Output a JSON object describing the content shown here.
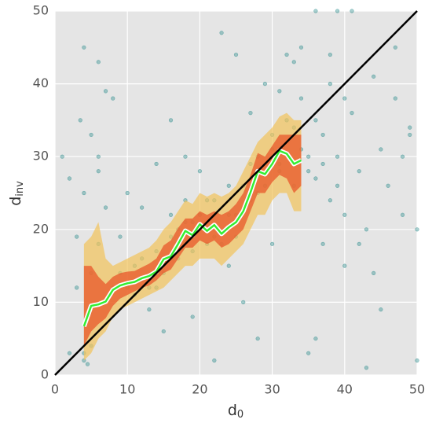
{
  "chart_data": {
    "type": "scatter",
    "xlabel": {
      "text": "d",
      "subscript": "0"
    },
    "ylabel": {
      "text": "d",
      "subscript": "inv"
    },
    "xlim": [
      0,
      50
    ],
    "ylim": [
      0,
      50
    ],
    "xticks": [
      0,
      10,
      20,
      30,
      40,
      50
    ],
    "yticks": [
      0,
      10,
      20,
      30,
      40,
      50
    ],
    "grid": true,
    "points": {
      "color": "#2b8c8c",
      "x": [
        4,
        4,
        4.5,
        5,
        5,
        3,
        3.5,
        4,
        6,
        4,
        6,
        7,
        6,
        8,
        9,
        10,
        11,
        12,
        13,
        14,
        15,
        16,
        17,
        18,
        19,
        20,
        21,
        22,
        23,
        24,
        25,
        26,
        27,
        28,
        29,
        30,
        31,
        32,
        33,
        34,
        35,
        36,
        37,
        38,
        39,
        40,
        41,
        42,
        43,
        44,
        45,
        46,
        47,
        48,
        49,
        50,
        50,
        48,
        44,
        41,
        36,
        39,
        33,
        31,
        30,
        28,
        26,
        24,
        22,
        20,
        18,
        16,
        14,
        12,
        10,
        9,
        8,
        7,
        6,
        5,
        2,
        1,
        2,
        3,
        35,
        36,
        37,
        38,
        43,
        45,
        47,
        49,
        40,
        42,
        13,
        15,
        19,
        23,
        25,
        27,
        29,
        32,
        34,
        36,
        38,
        40,
        16,
        18,
        21,
        24,
        27,
        30,
        33,
        11,
        12,
        14,
        17,
        19,
        22,
        25,
        28,
        31,
        34,
        35,
        37,
        39
      ],
      "y": [
        2,
        3,
        1.5,
        4,
        14,
        19,
        35,
        45,
        43,
        25,
        28,
        39,
        18,
        12,
        14,
        12,
        15,
        13,
        12,
        17,
        14,
        19,
        16,
        21,
        17,
        22,
        18,
        24,
        18,
        22,
        19,
        26,
        24,
        30,
        26,
        33,
        28,
        35,
        26,
        38,
        30,
        27,
        33,
        24,
        30,
        22,
        36,
        28,
        20,
        14,
        31,
        26,
        38,
        22,
        34,
        2,
        20,
        30,
        41,
        50,
        50,
        50,
        43,
        39,
        18,
        5,
        10,
        15,
        2,
        28,
        30,
        35,
        29,
        23,
        25,
        19,
        38,
        23,
        30,
        33,
        27,
        30,
        3,
        12,
        3,
        5,
        18,
        44,
        1,
        9,
        45,
        33,
        15,
        18,
        9,
        6,
        8,
        47,
        44,
        36,
        40,
        44,
        45,
        35,
        40,
        38,
        22,
        24,
        24,
        26,
        29,
        31,
        34,
        11,
        16,
        12,
        20,
        21,
        19,
        22,
        25,
        29,
        31,
        28,
        29,
        26
      ]
    },
    "x": [
      4,
      5,
      6,
      7,
      8,
      9,
      10,
      11,
      12,
      13,
      14,
      15,
      16,
      17,
      18,
      19,
      20,
      21,
      22,
      23,
      24,
      25,
      26,
      27,
      28,
      29,
      30,
      31,
      32,
      33,
      34
    ],
    "band_outer": {
      "color": "#f2c35a",
      "lower": [
        2,
        3,
        5,
        6,
        8,
        9,
        9.5,
        10,
        10.5,
        11,
        11.5,
        12,
        13,
        14,
        15,
        15,
        16,
        16,
        16,
        15,
        16,
        17,
        18,
        20,
        22,
        22,
        24,
        25,
        25,
        22.5,
        22.5
      ],
      "upper": [
        18,
        19,
        21,
        16,
        15,
        15.5,
        16,
        16.5,
        17,
        17.5,
        18.5,
        20,
        21,
        22.5,
        24,
        23.5,
        25,
        24.5,
        25,
        24.5,
        25,
        26,
        28,
        30,
        32,
        33,
        34,
        35.5,
        36,
        35,
        35
      ]
    },
    "band_inner": {
      "color": "#e8552a",
      "lower": [
        4,
        6,
        7,
        7.8,
        9.5,
        10.5,
        11,
        11.5,
        12,
        12.3,
        13,
        14,
        14.5,
        16,
        17.5,
        17.5,
        18.5,
        18,
        18.5,
        17.5,
        18,
        19,
        20,
        22.5,
        25,
        25,
        26.5,
        27.5,
        27,
        25,
        26
      ],
      "upper": [
        15,
        15,
        13.5,
        12.5,
        13.5,
        14,
        14.2,
        14.3,
        14.8,
        15.3,
        16,
        17.8,
        18.5,
        20.2,
        21.5,
        21.5,
        22.5,
        22,
        22.5,
        22,
        22.5,
        23.5,
        25,
        27.5,
        30.5,
        30,
        31.5,
        33,
        33,
        33,
        33
      ]
    },
    "median": {
      "color": "#33ee33",
      "values": [
        6.7,
        9.5,
        9.7,
        10.1,
        11.7,
        12.3,
        12.6,
        12.8,
        13.3,
        13.6,
        14.2,
        15.9,
        16.3,
        18,
        19.8,
        19.2,
        20.7,
        19.8,
        20.6,
        19.4,
        20.3,
        21,
        22.5,
        25.1,
        28,
        27.6,
        29,
        30.8,
        30.4,
        29,
        29.5
      ]
    },
    "diagonal": {
      "color": "#000000",
      "x": [
        0,
        50
      ],
      "y": [
        0,
        50
      ]
    }
  }
}
